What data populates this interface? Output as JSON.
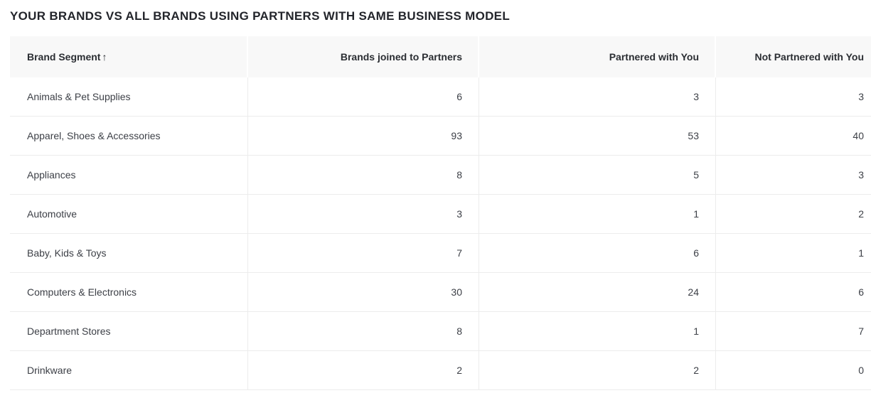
{
  "title": "YOUR BRANDS VS ALL BRANDS USING PARTNERS WITH SAME BUSINESS MODEL",
  "table": {
    "columns": [
      {
        "label": "Brand Segment",
        "sort_icon": "↑",
        "align": "left"
      },
      {
        "label": "Brands joined to Partners",
        "align": "right"
      },
      {
        "label": "Partnered with You",
        "align": "right"
      },
      {
        "label": "Not Partnered with You",
        "align": "right"
      }
    ],
    "rows": [
      {
        "segment": "Animals & Pet Supplies",
        "joined": "6",
        "partnered": "3",
        "not_partnered": "3"
      },
      {
        "segment": "Apparel, Shoes & Accessories",
        "joined": "93",
        "partnered": "53",
        "not_partnered": "40"
      },
      {
        "segment": "Appliances",
        "joined": "8",
        "partnered": "5",
        "not_partnered": "3"
      },
      {
        "segment": "Automotive",
        "joined": "3",
        "partnered": "1",
        "not_partnered": "2"
      },
      {
        "segment": "Baby, Kids & Toys",
        "joined": "7",
        "partnered": "6",
        "not_partnered": "1"
      },
      {
        "segment": "Computers & Electronics",
        "joined": "30",
        "partnered": "24",
        "not_partnered": "6"
      },
      {
        "segment": "Department Stores",
        "joined": "8",
        "partnered": "1",
        "not_partnered": "7"
      },
      {
        "segment": "Drinkware",
        "joined": "2",
        "partnered": "2",
        "not_partnered": "0"
      }
    ]
  },
  "colors": {
    "header_bg": "#f8f8f8",
    "row_border": "#ececec",
    "title_text": "#23252b",
    "header_text": "#2b2e33",
    "body_text": "#3d4047"
  }
}
